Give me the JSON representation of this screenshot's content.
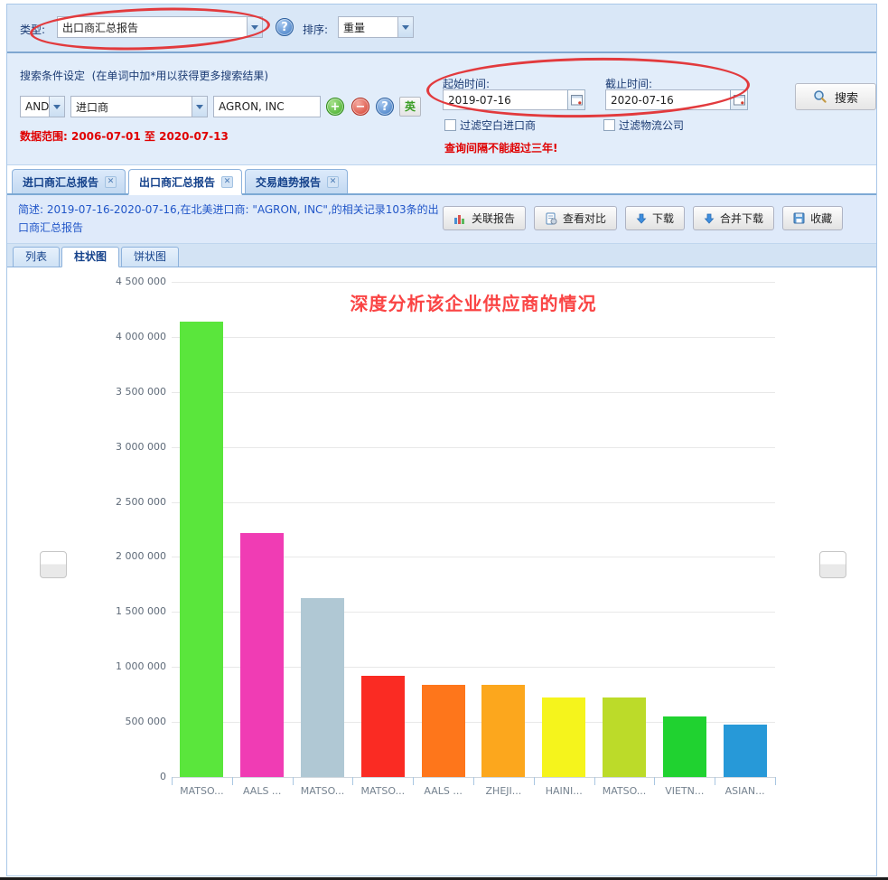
{
  "toolbar": {
    "type_label": "类型:",
    "type_value": "出口商汇总报告",
    "sort_label": "排序:",
    "sort_value": "重量"
  },
  "search": {
    "title": "搜索条件设定",
    "hint": "(在单词中加*用以获得更多搜索结果)",
    "bool_operator": "AND",
    "field": "进口商",
    "keyword": "AGRON, INC",
    "lang_button": "英",
    "data_range": "数据范围: 2006-07-01 至 2020-07-13",
    "start_label": "起始时间:",
    "start_value": "2019-07-16",
    "end_label": "截止时间:",
    "end_value": "2020-07-16",
    "filter_blank_importer": "过滤空白进口商",
    "filter_logistics": "过滤物流公司",
    "warning": "查询间隔不能超过三年!",
    "search_button": "搜索"
  },
  "report_tabs": {
    "items": [
      {
        "label": "进口商汇总报告",
        "active": false
      },
      {
        "label": "出口商汇总报告",
        "active": true
      },
      {
        "label": "交易趋势报告",
        "active": false
      }
    ]
  },
  "summary": {
    "text": "简述: 2019-07-16-2020-07-16,在北美进口商: \"AGRON, INC\",的相关记录103条的出口商汇总报告"
  },
  "actions": {
    "related_report": "关联报告",
    "view_compare": "查看对比",
    "download": "下载",
    "merge_download": "合并下载",
    "favorite": "收藏"
  },
  "view_tabs": {
    "list": "列表",
    "bar": "柱状图",
    "pie": "饼状图"
  },
  "annotation": {
    "ellipse_color": "#e23a3d"
  },
  "chart_data": {
    "type": "bar",
    "title": "深度分析该企业供应商的情况",
    "title_color": "#fa4444",
    "categories": [
      "MATSO...",
      "AALS ...",
      "MATSO...",
      "MATSO...",
      "AALS ...",
      "ZHEJI...",
      "HAINI...",
      "MATSO...",
      "VIETN...",
      "ASIAN..."
    ],
    "values": [
      4140000,
      2220000,
      1630000,
      920000,
      840000,
      840000,
      720000,
      720000,
      550000,
      480000
    ],
    "colors": [
      "#5ae63c",
      "#f03cb4",
      "#b0c8d4",
      "#fa2b23",
      "#fe761b",
      "#fca71d",
      "#f5f41c",
      "#bcdb29",
      "#20d230",
      "#2799d8"
    ],
    "xlabel": "",
    "ylabel": "",
    "ylim": [
      0,
      4500000
    ],
    "ytick_step": 500000,
    "grid": true,
    "legend": "none"
  }
}
